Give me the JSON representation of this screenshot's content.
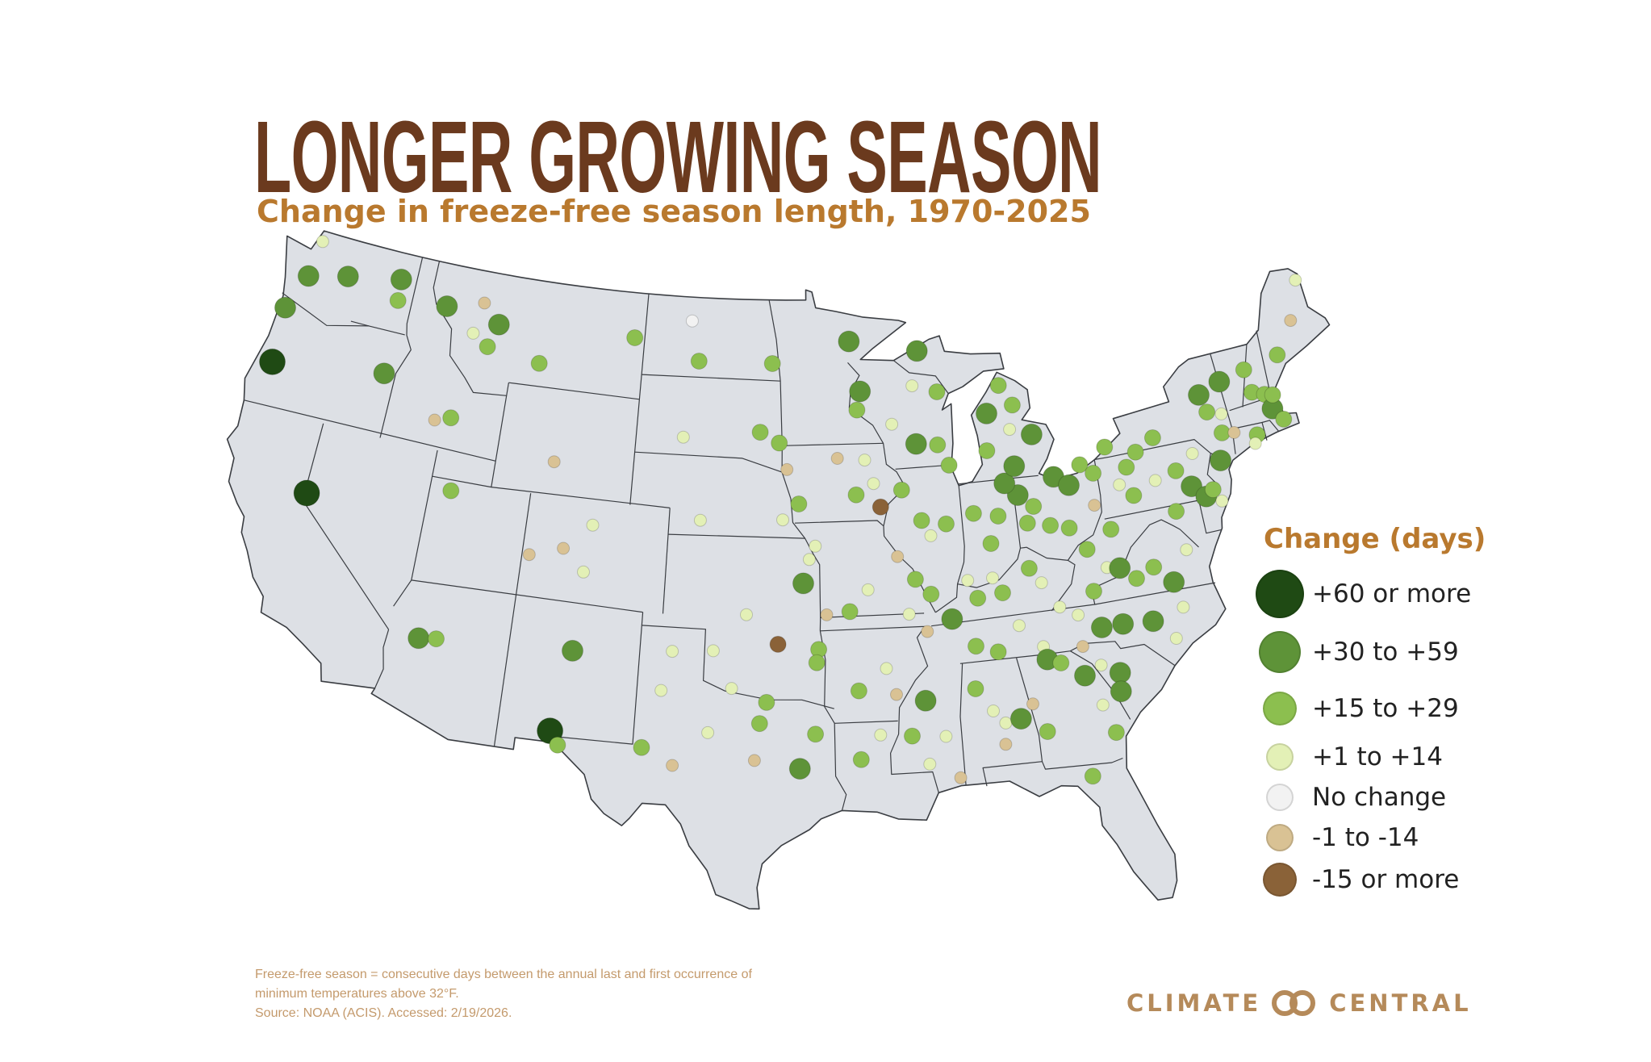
{
  "title": "LONGER GROWING SEASON",
  "subtitle": "Change in freeze-free season length, 1970-2025",
  "colors": {
    "title": "#6b3a1e",
    "subtitle": "#b9792e",
    "land": "#dde0e5",
    "border": "#3a3d42"
  },
  "legend": {
    "title": "Change (days)",
    "items": [
      {
        "key": "c60",
        "label": "+60 or more",
        "color": "#1f4a14"
      },
      {
        "key": "c30",
        "label": "+30 to +59",
        "color": "#5e9338"
      },
      {
        "key": "c15",
        "label": "+15 to +29",
        "color": "#8cbf4f"
      },
      {
        "key": "c1",
        "label": "+1 to +14",
        "color": "#e3f0b6"
      },
      {
        "key": "c0",
        "label": "No change",
        "color": "#f2f2f2"
      },
      {
        "key": "n1",
        "label": "-1 to -14",
        "color": "#d9c294"
      },
      {
        "key": "n15",
        "label": "-15 or more",
        "color": "#8a6238"
      }
    ]
  },
  "stations": [
    {
      "lon": -122.7,
      "lat": 48.6,
      "cat": "c1"
    },
    {
      "lon": -122.9,
      "lat": 47.2,
      "cat": "c30"
    },
    {
      "lon": -120.8,
      "lat": 47.6,
      "cat": "c30"
    },
    {
      "lon": -117.9,
      "lat": 48.0,
      "cat": "c30"
    },
    {
      "lon": -117.8,
      "lat": 47.2,
      "cat": "c15"
    },
    {
      "lon": -123.6,
      "lat": 45.8,
      "cat": "c30"
    },
    {
      "lon": -123.4,
      "lat": 43.7,
      "cat": "c60"
    },
    {
      "lon": -117.6,
      "lat": 44.4,
      "cat": "c30"
    },
    {
      "lon": -119.9,
      "lat": 39.3,
      "cat": "c60"
    },
    {
      "lon": -115.1,
      "lat": 47.4,
      "cat": "c30"
    },
    {
      "lon": -112.1,
      "lat": 47.1,
      "cat": "c30"
    },
    {
      "lon": -113.1,
      "lat": 47.8,
      "cat": "n1"
    },
    {
      "lon": -112.5,
      "lat": 46.2,
      "cat": "c15"
    },
    {
      "lon": -113.4,
      "lat": 46.6,
      "cat": "c1"
    },
    {
      "lon": -109.6,
      "lat": 45.9,
      "cat": "c15"
    },
    {
      "lon": -114.5,
      "lat": 43.1,
      "cat": "n1"
    },
    {
      "lon": -113.7,
      "lat": 43.3,
      "cat": "c15"
    },
    {
      "lon": -113.0,
      "lat": 40.6,
      "cat": "c15"
    },
    {
      "lon": -108.1,
      "lat": 42.3,
      "cat": "n1"
    },
    {
      "lon": -105.8,
      "lat": 40.1,
      "cat": "c1"
    },
    {
      "lon": -107.1,
      "lat": 39.1,
      "cat": "n1"
    },
    {
      "lon": -106.0,
      "lat": 38.3,
      "cat": "c1"
    },
    {
      "lon": -108.7,
      "lat": 38.7,
      "cat": "n1"
    },
    {
      "lon": -104.6,
      "lat": 47.3,
      "cat": "c15"
    },
    {
      "lon": -101.5,
      "lat": 48.1,
      "cat": "c0"
    },
    {
      "lon": -101.0,
      "lat": 46.6,
      "cat": "c15"
    },
    {
      "lon": -97.0,
      "lat": 46.6,
      "cat": "c15"
    },
    {
      "lon": -101.6,
      "lat": 43.7,
      "cat": "c1"
    },
    {
      "lon": -100.5,
      "lat": 40.6,
      "cat": "c1"
    },
    {
      "lon": -97.6,
      "lat": 44.0,
      "cat": "c15"
    },
    {
      "lon": -96.6,
      "lat": 43.6,
      "cat": "c15"
    },
    {
      "lon": -96.2,
      "lat": 42.6,
      "cat": "n1"
    },
    {
      "lon": -95.6,
      "lat": 41.3,
      "cat": "c15"
    },
    {
      "lon": -96.4,
      "lat": 40.7,
      "cat": "c1"
    },
    {
      "lon": -95.1,
      "lat": 39.2,
      "cat": "c1"
    },
    {
      "lon": -94.8,
      "lat": 39.7,
      "cat": "c1"
    },
    {
      "lon": -95.4,
      "lat": 38.3,
      "cat": "c30"
    },
    {
      "lon": -98.1,
      "lat": 37.1,
      "cat": "c1"
    },
    {
      "lon": -113.2,
      "lat": 34.9,
      "cat": "c30"
    },
    {
      "lon": -112.4,
      "lat": 35.0,
      "cat": "c15"
    },
    {
      "lon": -106.1,
      "lat": 35.3,
      "cat": "c30"
    },
    {
      "lon": -106.7,
      "lat": 32.2,
      "cat": "c60"
    },
    {
      "lon": -106.3,
      "lat": 31.7,
      "cat": "c15"
    },
    {
      "lon": -92.8,
      "lat": 47.4,
      "cat": "c30"
    },
    {
      "lon": -92.3,
      "lat": 45.5,
      "cat": "c30"
    },
    {
      "lon": -92.5,
      "lat": 44.8,
      "cat": "c15"
    },
    {
      "lon": -89.1,
      "lat": 46.9,
      "cat": "c30"
    },
    {
      "lon": -89.5,
      "lat": 45.6,
      "cat": "c1"
    },
    {
      "lon": -88.2,
      "lat": 45.3,
      "cat": "c15"
    },
    {
      "lon": -90.7,
      "lat": 44.2,
      "cat": "c1"
    },
    {
      "lon": -89.5,
      "lat": 43.4,
      "cat": "c30"
    },
    {
      "lon": -88.4,
      "lat": 43.3,
      "cat": "c15"
    },
    {
      "lon": -87.9,
      "lat": 42.5,
      "cat": "c15"
    },
    {
      "lon": -93.6,
      "lat": 43.0,
      "cat": "n1"
    },
    {
      "lon": -92.2,
      "lat": 42.9,
      "cat": "c1"
    },
    {
      "lon": -91.8,
      "lat": 42.0,
      "cat": "c1"
    },
    {
      "lon": -92.7,
      "lat": 41.6,
      "cat": "c15"
    },
    {
      "lon": -91.5,
      "lat": 41.1,
      "cat": "n15"
    },
    {
      "lon": -90.4,
      "lat": 41.7,
      "cat": "c15"
    },
    {
      "lon": -89.5,
      "lat": 40.5,
      "cat": "c15"
    },
    {
      "lon": -88.3,
      "lat": 40.3,
      "cat": "c15"
    },
    {
      "lon": -89.1,
      "lat": 39.9,
      "cat": "c1"
    },
    {
      "lon": -90.8,
      "lat": 39.2,
      "cat": "n1"
    },
    {
      "lon": -90.0,
      "lat": 38.3,
      "cat": "c15"
    },
    {
      "lon": -92.3,
      "lat": 38.0,
      "cat": "c1"
    },
    {
      "lon": -93.2,
      "lat": 37.2,
      "cat": "c15"
    },
    {
      "lon": -94.3,
      "lat": 37.1,
      "cat": "n1"
    },
    {
      "lon": -96.6,
      "lat": 36.0,
      "cat": "n15"
    },
    {
      "lon": -94.7,
      "lat": 35.8,
      "cat": "c15"
    },
    {
      "lon": -94.8,
      "lat": 35.3,
      "cat": "c15"
    },
    {
      "lon": -99.6,
      "lat": 35.7,
      "cat": "c1"
    },
    {
      "lon": -101.5,
      "lat": 35.6,
      "cat": "c1"
    },
    {
      "lon": -101.9,
      "lat": 34.1,
      "cat": "c1"
    },
    {
      "lon": -98.7,
      "lat": 34.3,
      "cat": "c1"
    },
    {
      "lon": -97.1,
      "lat": 33.8,
      "cat": "c15"
    },
    {
      "lon": -97.4,
      "lat": 33.0,
      "cat": "c15"
    },
    {
      "lon": -99.7,
      "lat": 32.6,
      "cat": "c1"
    },
    {
      "lon": -102.6,
      "lat": 31.9,
      "cat": "c15"
    },
    {
      "lon": -101.2,
      "lat": 31.3,
      "cat": "n1"
    },
    {
      "lon": -97.6,
      "lat": 31.6,
      "cat": "n1"
    },
    {
      "lon": -95.6,
      "lat": 31.3,
      "cat": "c30"
    },
    {
      "lon": -94.9,
      "lat": 32.6,
      "cat": "c15"
    },
    {
      "lon": -92.9,
      "lat": 34.2,
      "cat": "c15"
    },
    {
      "lon": -91.6,
      "lat": 35.0,
      "cat": "c1"
    },
    {
      "lon": -91.2,
      "lat": 34.0,
      "cat": "n1"
    },
    {
      "lon": -92.9,
      "lat": 31.6,
      "cat": "c15"
    },
    {
      "lon": -92.0,
      "lat": 32.5,
      "cat": "c1"
    },
    {
      "lon": -89.9,
      "lat": 33.7,
      "cat": "c30"
    },
    {
      "lon": -89.9,
      "lat": 31.3,
      "cat": "c1"
    },
    {
      "lon": -90.6,
      "lat": 32.4,
      "cat": "c15"
    },
    {
      "lon": -89.1,
      "lat": 32.3,
      "cat": "c1"
    },
    {
      "lon": -88.6,
      "lat": 30.7,
      "cat": "n1"
    },
    {
      "lon": -90.4,
      "lat": 37.0,
      "cat": "c1"
    },
    {
      "lon": -89.6,
      "lat": 36.3,
      "cat": "n1"
    },
    {
      "lon": -89.3,
      "lat": 37.7,
      "cat": "c15"
    },
    {
      "lon": -88.4,
      "lat": 36.7,
      "cat": "c30"
    },
    {
      "lon": -87.5,
      "lat": 38.1,
      "cat": "c1"
    },
    {
      "lon": -87.1,
      "lat": 37.4,
      "cat": "c15"
    },
    {
      "lon": -86.3,
      "lat": 38.1,
      "cat": "c1"
    },
    {
      "lon": -85.9,
      "lat": 37.5,
      "cat": "c15"
    },
    {
      "lon": -84.5,
      "lat": 38.3,
      "cat": "c15"
    },
    {
      "lon": -84.0,
      "lat": 37.7,
      "cat": "c1"
    },
    {
      "lon": -83.3,
      "lat": 36.7,
      "cat": "c1"
    },
    {
      "lon": -85.3,
      "lat": 36.2,
      "cat": "c1"
    },
    {
      "lon": -86.4,
      "lat": 35.3,
      "cat": "c15"
    },
    {
      "lon": -87.4,
      "lat": 35.6,
      "cat": "c15"
    },
    {
      "lon": -84.3,
      "lat": 35.3,
      "cat": "c1"
    },
    {
      "lon": -87.6,
      "lat": 34.0,
      "cat": "c15"
    },
    {
      "lon": -86.9,
      "lat": 33.1,
      "cat": "c1"
    },
    {
      "lon": -86.4,
      "lat": 32.6,
      "cat": "c1"
    },
    {
      "lon": -85.7,
      "lat": 32.7,
      "cat": "c30"
    },
    {
      "lon": -85.1,
      "lat": 33.2,
      "cat": "n1"
    },
    {
      "lon": -86.5,
      "lat": 31.8,
      "cat": "n1"
    },
    {
      "lon": -84.6,
      "lat": 32.1,
      "cat": "c15"
    },
    {
      "lon": -84.2,
      "lat": 34.8,
      "cat": "c30"
    },
    {
      "lon": -83.6,
      "lat": 34.6,
      "cat": "c15"
    },
    {
      "lon": -82.5,
      "lat": 35.1,
      "cat": "n1"
    },
    {
      "lon": -82.6,
      "lat": 34.0,
      "cat": "c30"
    },
    {
      "lon": -81.8,
      "lat": 34.3,
      "cat": "c1"
    },
    {
      "lon": -81.0,
      "lat": 33.9,
      "cat": "c30"
    },
    {
      "lon": -81.1,
      "lat": 33.2,
      "cat": "c30"
    },
    {
      "lon": -82.0,
      "lat": 32.8,
      "cat": "c1"
    },
    {
      "lon": -81.6,
      "lat": 31.7,
      "cat": "c15"
    },
    {
      "lon": -82.9,
      "lat": 30.2,
      "cat": "c15"
    },
    {
      "lon": -82.5,
      "lat": 36.3,
      "cat": "c1"
    },
    {
      "lon": -81.5,
      "lat": 35.7,
      "cat": "c30"
    },
    {
      "lon": -80.5,
      "lat": 35.7,
      "cat": "c30"
    },
    {
      "lon": -79.1,
      "lat": 35.6,
      "cat": "c30"
    },
    {
      "lon": -78.2,
      "lat": 34.8,
      "cat": "c1"
    },
    {
      "lon": -77.6,
      "lat": 35.9,
      "cat": "c1"
    },
    {
      "lon": -81.6,
      "lat": 37.1,
      "cat": "c15"
    },
    {
      "lon": -80.8,
      "lat": 37.9,
      "cat": "c1"
    },
    {
      "lon": -80.2,
      "lat": 37.8,
      "cat": "c30"
    },
    {
      "lon": -79.5,
      "lat": 37.3,
      "cat": "c15"
    },
    {
      "lon": -78.6,
      "lat": 37.6,
      "cat": "c15"
    },
    {
      "lon": -77.8,
      "lat": 36.9,
      "cat": "c30"
    },
    {
      "lon": -76.9,
      "lat": 38.0,
      "cat": "c1"
    },
    {
      "lon": -80.3,
      "lat": 39.3,
      "cat": "c15"
    },
    {
      "lon": -81.6,
      "lat": 38.7,
      "cat": "c15"
    },
    {
      "lon": -82.3,
      "lat": 39.6,
      "cat": "c15"
    },
    {
      "lon": -83.2,
      "lat": 39.8,
      "cat": "c15"
    },
    {
      "lon": -84.3,
      "lat": 40.0,
      "cat": "c15"
    },
    {
      "lon": -83.9,
      "lat": 40.6,
      "cat": "c15"
    },
    {
      "lon": -84.6,
      "lat": 41.1,
      "cat": "c30"
    },
    {
      "lon": -85.7,
      "lat": 40.4,
      "cat": "c15"
    },
    {
      "lon": -86.9,
      "lat": 40.6,
      "cat": "c15"
    },
    {
      "lon": -86.2,
      "lat": 39.4,
      "cat": "c15"
    },
    {
      "lon": -85.2,
      "lat": 41.6,
      "cat": "c30"
    },
    {
      "lon": -84.6,
      "lat": 42.2,
      "cat": "c30"
    },
    {
      "lon": -83.5,
      "lat": 43.3,
      "cat": "c30"
    },
    {
      "lon": -84.3,
      "lat": 44.5,
      "cat": "c15"
    },
    {
      "lon": -84.9,
      "lat": 45.3,
      "cat": "c15"
    },
    {
      "lon": -85.7,
      "lat": 44.3,
      "cat": "c30"
    },
    {
      "lon": -85.9,
      "lat": 42.9,
      "cat": "c15"
    },
    {
      "lon": -84.6,
      "lat": 43.6,
      "cat": "c1"
    },
    {
      "lon": -82.7,
      "lat": 41.6,
      "cat": "c30"
    },
    {
      "lon": -82.0,
      "lat": 41.2,
      "cat": "c30"
    },
    {
      "lon": -81.3,
      "lat": 41.9,
      "cat": "c15"
    },
    {
      "lon": -80.7,
      "lat": 41.5,
      "cat": "c15"
    },
    {
      "lon": -80.9,
      "lat": 40.3,
      "cat": "n1"
    },
    {
      "lon": -79.9,
      "lat": 42.4,
      "cat": "c15"
    },
    {
      "lon": -78.4,
      "lat": 42.0,
      "cat": "c15"
    },
    {
      "lon": -77.4,
      "lat": 42.4,
      "cat": "c15"
    },
    {
      "lon": -76.6,
      "lat": 41.0,
      "cat": "c15"
    },
    {
      "lon": -77.7,
      "lat": 40.8,
      "cat": "c1"
    },
    {
      "lon": -78.9,
      "lat": 40.4,
      "cat": "c15"
    },
    {
      "lon": -79.5,
      "lat": 40.9,
      "cat": "c1"
    },
    {
      "lon": -79.0,
      "lat": 41.5,
      "cat": "c15"
    },
    {
      "lon": -76.0,
      "lat": 40.3,
      "cat": "c30"
    },
    {
      "lon": -75.4,
      "lat": 39.8,
      "cat": "c30"
    },
    {
      "lon": -75.0,
      "lat": 40.0,
      "cat": "c15"
    },
    {
      "lon": -74.7,
      "lat": 39.5,
      "cat": "c1"
    },
    {
      "lon": -77.0,
      "lat": 39.5,
      "cat": "c15"
    },
    {
      "lon": -75.6,
      "lat": 41.5,
      "cat": "c1"
    },
    {
      "lon": -74.3,
      "lat": 41.0,
      "cat": "c30"
    },
    {
      "lon": -73.9,
      "lat": 42.0,
      "cat": "c15"
    },
    {
      "lon": -74.6,
      "lat": 43.6,
      "cat": "c30"
    },
    {
      "lon": -74.4,
      "lat": 42.9,
      "cat": "c15"
    },
    {
      "lon": -73.7,
      "lat": 42.7,
      "cat": "c1"
    },
    {
      "lon": -73.4,
      "lat": 43.9,
      "cat": "c30"
    },
    {
      "lon": -72.0,
      "lat": 44.1,
      "cat": "c15"
    },
    {
      "lon": -71.9,
      "lat": 43.2,
      "cat": "c15"
    },
    {
      "lon": -71.3,
      "lat": 43.0,
      "cat": "c15"
    },
    {
      "lon": -71.1,
      "lat": 42.4,
      "cat": "c30"
    },
    {
      "lon": -70.9,
      "lat": 42.9,
      "cat": "c15"
    },
    {
      "lon": -70.7,
      "lat": 41.9,
      "cat": "c15"
    },
    {
      "lon": -72.2,
      "lat": 41.6,
      "cat": "c15"
    },
    {
      "lon": -70.1,
      "lat": 44.3,
      "cat": "c15"
    },
    {
      "lon": -68.9,
      "lat": 45.4,
      "cat": "n1"
    },
    {
      "lon": -68.0,
      "lat": 46.8,
      "cat": "c1"
    },
    {
      "lon": -72.4,
      "lat": 41.3,
      "cat": "c1"
    },
    {
      "lon": -73.3,
      "lat": 41.9,
      "cat": "n1"
    }
  ],
  "footnote": {
    "line1": "Freeze-free season = consecutive days between the annual last and first occurrence of",
    "line2": "minimum temperatures above 32°F.",
    "line3": "Source: NOAA (ACIS). Accessed: 2/19/2026."
  },
  "brand": {
    "left": "CLIMATE",
    "right": "CENTRAL",
    "logo_icon": "interlocking-rings-icon"
  }
}
